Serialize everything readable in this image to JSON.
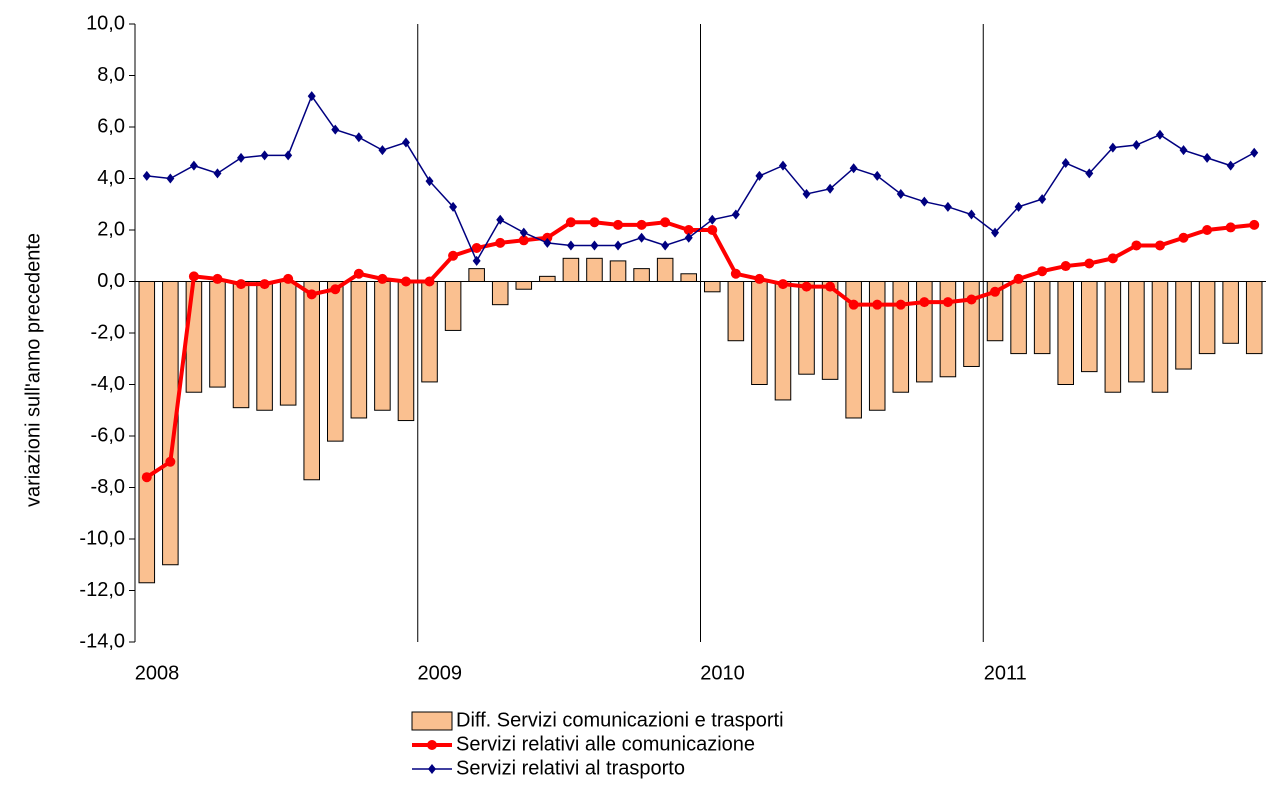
{
  "chart_data": {
    "type": "bar_line",
    "y_label": "variazioni sull'anno precedente",
    "categories": [
      "2008",
      null,
      null,
      null,
      null,
      null,
      null,
      null,
      null,
      null,
      null,
      null,
      "2009",
      null,
      null,
      null,
      null,
      null,
      null,
      null,
      null,
      null,
      null,
      null,
      "2010",
      null,
      null,
      null,
      null,
      null,
      null,
      null,
      null,
      null,
      null,
      null,
      "2011",
      null,
      null,
      null,
      null,
      null,
      null,
      null,
      null,
      null,
      null,
      null
    ],
    "series": [
      {
        "name": "Diff. Servizi comunicazioni e trasporti",
        "type": "bar",
        "color": "#fac090",
        "values": [
          -11.7,
          -11.0,
          -4.3,
          -4.1,
          -4.9,
          -5.0,
          -4.8,
          -7.7,
          -6.2,
          -5.3,
          -5.0,
          -5.4,
          -3.9,
          -1.9,
          0.5,
          -0.9,
          -0.3,
          0.2,
          0.9,
          0.9,
          0.8,
          0.5,
          0.9,
          0.3,
          -0.4,
          -2.3,
          -4.0,
          -4.6,
          -3.6,
          -3.8,
          -5.3,
          -5.0,
          -4.3,
          -3.9,
          -3.7,
          -3.3,
          -2.3,
          -2.8,
          -2.8,
          -4.0,
          -3.5,
          -4.3,
          -3.9,
          -4.3,
          -3.4,
          -2.8,
          -2.4,
          -2.8
        ]
      },
      {
        "name": "Servizi relativi alle comunicazione",
        "type": "line",
        "color": "#ff0000",
        "values": [
          -7.6,
          -7.0,
          0.2,
          0.1,
          -0.1,
          -0.1,
          0.1,
          -0.5,
          -0.3,
          0.3,
          0.1,
          0.0,
          0.0,
          1.0,
          1.3,
          1.5,
          1.6,
          1.7,
          2.3,
          2.3,
          2.2,
          2.2,
          2.3,
          2.0,
          2.0,
          0.3,
          0.1,
          -0.1,
          -0.2,
          -0.2,
          -0.9,
          -0.9,
          -0.9,
          -0.8,
          -0.8,
          -0.7,
          -0.4,
          0.1,
          0.4,
          0.6,
          0.7,
          0.9,
          1.4,
          1.4,
          1.7,
          2.0,
          2.1,
          2.2
        ]
      },
      {
        "name": "Servizi relativi al trasporto",
        "type": "line",
        "color": "#000080",
        "values": [
          4.1,
          4.0,
          4.5,
          4.2,
          4.8,
          4.9,
          4.9,
          7.2,
          5.9,
          5.6,
          5.1,
          5.4,
          3.9,
          2.9,
          0.8,
          2.4,
          1.9,
          1.5,
          1.4,
          1.4,
          1.4,
          1.7,
          1.4,
          1.7,
          2.4,
          2.6,
          4.1,
          4.5,
          3.4,
          3.6,
          4.4,
          4.1,
          3.4,
          3.1,
          2.9,
          2.6,
          1.9,
          2.9,
          3.2,
          4.6,
          4.2,
          5.2,
          5.3,
          5.7,
          5.1,
          4.8,
          4.5,
          5.0
        ]
      }
    ],
    "ylim": [
      -14,
      10
    ],
    "yticks": [
      {
        "value": -14,
        "label": "-14,0"
      },
      {
        "value": -12,
        "label": "-12,0"
      },
      {
        "value": -10,
        "label": "-10,0"
      },
      {
        "value": -8,
        "label": "-8,0"
      },
      {
        "value": -6,
        "label": "-6,0"
      },
      {
        "value": -4,
        "label": "-4,0"
      },
      {
        "value": -2,
        "label": "-2,0"
      },
      {
        "value": 0,
        "label": "0,0"
      },
      {
        "value": 2,
        "label": "2,0"
      },
      {
        "value": 4,
        "label": "4,0"
      },
      {
        "value": 6,
        "label": "6,0"
      },
      {
        "value": 8,
        "label": "8,0"
      },
      {
        "value": 10,
        "label": "10,0"
      }
    ],
    "legend": "bottom"
  }
}
